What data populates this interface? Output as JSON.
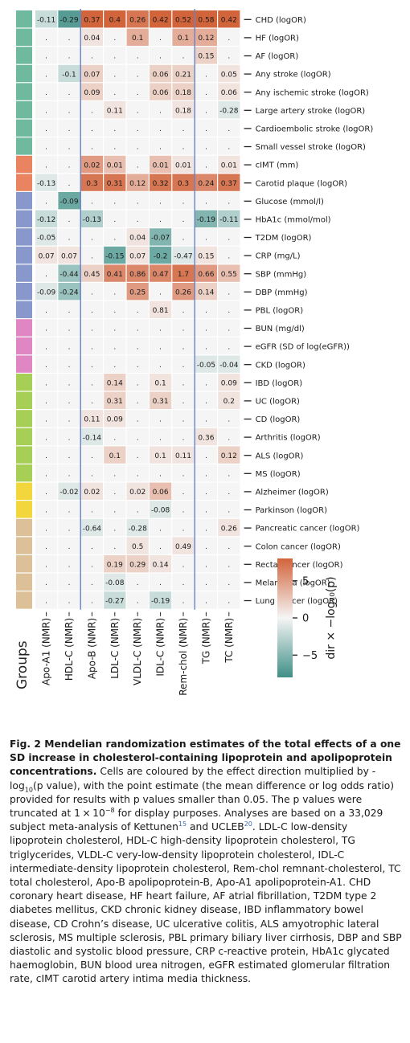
{
  "chart_data": {
    "type": "heatmap",
    "columns": [
      "Apo-A1 (NMR)",
      "HDL-C (NMR)",
      "Apo-B (NMR)",
      "LDL-C (NMR)",
      "VLDL-C (NMR)",
      "IDL-C (NMR)",
      "Rem-chol (NMR)",
      "TG (NMR)",
      "TC (NMR)"
    ],
    "groups_label": "Groups",
    "rows": [
      {
        "label": "CHD (logOR)",
        "group": 0,
        "cells": [
          "-0.11",
          "-0.29",
          "0.37",
          "0.4",
          "0.26",
          "0.42",
          "0.52",
          "0.58",
          "0.42"
        ],
        "c": [
          -2,
          -7,
          8,
          9,
          7,
          9,
          9,
          9,
          9
        ]
      },
      {
        "label": "HF (logOR)",
        "group": 0,
        "cells": [
          ".",
          ".",
          "0.04",
          ".",
          "0.1",
          ".",
          "0.1",
          "0.12",
          "."
        ],
        "c": [
          0,
          0,
          1,
          0,
          4,
          0,
          4,
          4,
          0
        ]
      },
      {
        "label": "AF (logOR)",
        "group": 0,
        "cells": [
          ".",
          ".",
          ".",
          ".",
          ".",
          ".",
          ".",
          "0.15",
          "."
        ],
        "c": [
          0,
          0,
          0,
          0,
          0,
          0,
          0,
          2,
          0
        ]
      },
      {
        "label": "Any stroke (logOR)",
        "group": 0,
        "cells": [
          ".",
          "-0.1",
          "0.07",
          ".",
          ".",
          "0.06",
          "0.21",
          ".",
          "0.05"
        ],
        "c": [
          0,
          -2,
          2,
          0,
          0,
          2,
          2,
          0,
          1
        ]
      },
      {
        "label": "Any ischemic stroke (logOR)",
        "group": 0,
        "cells": [
          ".",
          ".",
          "0.09",
          ".",
          ".",
          "0.06",
          "0.18",
          ".",
          "0.06"
        ],
        "c": [
          0,
          0,
          2,
          0,
          0,
          2,
          2,
          0,
          1
        ]
      },
      {
        "label": "Large artery stroke (logOR)",
        "group": 0,
        "cells": [
          ".",
          ".",
          ".",
          "0.11",
          ".",
          ".",
          "0.18",
          ".",
          "-0.28"
        ],
        "c": [
          0,
          0,
          0,
          1,
          0,
          0,
          1,
          0,
          -1
        ]
      },
      {
        "label": "Cardioembolic stroke (logOR)",
        "group": 0,
        "cells": [
          ".",
          ".",
          ".",
          ".",
          ".",
          ".",
          ".",
          ".",
          "."
        ],
        "c": [
          0,
          0,
          0,
          0,
          0,
          0,
          0,
          0,
          0
        ]
      },
      {
        "label": "Small vessel stroke (logOR)",
        "group": 0,
        "cells": [
          ".",
          ".",
          ".",
          ".",
          ".",
          ".",
          ".",
          ".",
          "."
        ],
        "c": [
          0,
          0,
          0,
          0,
          0,
          0,
          0,
          0,
          0
        ]
      },
      {
        "label": "cIMT (mm)",
        "group": 1,
        "cells": [
          ".",
          ".",
          "0.02",
          "0.01",
          ".",
          "0.01",
          "0.01",
          ".",
          "0.01"
        ],
        "c": [
          0,
          0,
          5,
          3,
          0,
          3,
          1,
          0,
          1
        ]
      },
      {
        "label": "Carotid plaque (logOR)",
        "group": 1,
        "cells": [
          "-0.13",
          ".",
          "0.3",
          "0.31",
          "0.12",
          "0.32",
          "0.3",
          "0.24",
          "0.37"
        ],
        "c": [
          -1,
          0,
          7,
          7,
          4,
          7,
          7,
          6,
          7
        ]
      },
      {
        "label": "Glucose (mmol/l)",
        "group": 2,
        "cells": [
          ".",
          "-0.09",
          ".",
          ".",
          ".",
          ".",
          ".",
          ".",
          "."
        ],
        "c": [
          0,
          -6,
          0,
          0,
          0,
          0,
          0,
          0,
          0
        ]
      },
      {
        "label": "HbA1c (mmol/mol)",
        "group": 2,
        "cells": [
          "-0.12",
          ".",
          "-0.13",
          ".",
          ".",
          ".",
          ".",
          "-0.19",
          "-0.11"
        ],
        "c": [
          -2,
          0,
          -3,
          0,
          0,
          0,
          0,
          -5,
          -3
        ]
      },
      {
        "label": "T2DM (logOR)",
        "group": 2,
        "cells": [
          "-0.05",
          ".",
          ".",
          ".",
          "0.04",
          "-0.07",
          ".",
          ".",
          "."
        ],
        "c": [
          -1,
          0,
          0,
          0,
          1,
          -5,
          0,
          0,
          0
        ]
      },
      {
        "label": "CRP (mg/L)",
        "group": 2,
        "cells": [
          "0.07",
          "0.07",
          ".",
          "-0.15",
          "0.07",
          "-0.2",
          "-0.47",
          "0.15",
          "."
        ],
        "c": [
          1,
          1,
          0,
          -6,
          1,
          -6,
          -1,
          1,
          0
        ]
      },
      {
        "label": "SBP (mmHg)",
        "group": 2,
        "cells": [
          ".",
          "-0.44",
          "0.45",
          "0.41",
          "0.86",
          "0.47",
          "1.7",
          "0.66",
          "0.55"
        ],
        "c": [
          0,
          -4,
          2,
          6,
          6,
          6,
          7,
          5,
          3
        ]
      },
      {
        "label": "DBP (mmHg)",
        "group": 2,
        "cells": [
          "-0.09",
          "-0.24",
          ".",
          ".",
          "0.25",
          ".",
          "0.26",
          "0.14",
          "."
        ],
        "c": [
          -1,
          -4,
          0,
          0,
          5,
          0,
          5,
          2,
          0
        ]
      },
      {
        "label": "PBL (logOR)",
        "group": 2,
        "cells": [
          ".",
          ".",
          ".",
          ".",
          ".",
          "0.81",
          ".",
          ".",
          "."
        ],
        "c": [
          0,
          0,
          0,
          0,
          0,
          1,
          0,
          0,
          0
        ]
      },
      {
        "label": "BUN (mg/dl)",
        "group": 3,
        "cells": [
          ".",
          ".",
          ".",
          ".",
          ".",
          ".",
          ".",
          ".",
          "."
        ],
        "c": [
          0,
          0,
          0,
          0,
          0,
          0,
          0,
          0,
          0
        ]
      },
      {
        "label": "eGFR (SD of log(eGFR))",
        "group": 3,
        "cells": [
          ".",
          ".",
          ".",
          ".",
          ".",
          ".",
          ".",
          ".",
          "."
        ],
        "c": [
          0,
          0,
          0,
          0,
          0,
          0,
          0,
          0,
          0
        ]
      },
      {
        "label": "CKD (logOR)",
        "group": 3,
        "cells": [
          ".",
          ".",
          ".",
          ".",
          ".",
          ".",
          ".",
          "-0.05",
          "-0.04"
        ],
        "c": [
          0,
          0,
          0,
          0,
          0,
          0,
          0,
          -1,
          -1
        ]
      },
      {
        "label": "IBD (logOR)",
        "group": 4,
        "cells": [
          ".",
          ".",
          ".",
          "0.14",
          ".",
          "0.1",
          ".",
          ".",
          "0.09"
        ],
        "c": [
          0,
          0,
          0,
          2,
          0,
          1,
          0,
          0,
          1
        ]
      },
      {
        "label": "UC (logOR)",
        "group": 4,
        "cells": [
          ".",
          ".",
          ".",
          "0.31",
          ".",
          "0.31",
          ".",
          ".",
          "0.2"
        ],
        "c": [
          0,
          0,
          0,
          2,
          0,
          2,
          0,
          0,
          1
        ]
      },
      {
        "label": "CD (logOR)",
        "group": 4,
        "cells": [
          ".",
          ".",
          "0.11",
          "0.09",
          ".",
          ".",
          ".",
          ".",
          "."
        ],
        "c": [
          0,
          0,
          1,
          1,
          0,
          0,
          0,
          0,
          0
        ]
      },
      {
        "label": "Arthritis (logOR)",
        "group": 4,
        "cells": [
          ".",
          ".",
          "-0.14",
          ".",
          ".",
          ".",
          ".",
          "0.36",
          "."
        ],
        "c": [
          0,
          0,
          -1,
          0,
          0,
          0,
          0,
          1,
          0
        ]
      },
      {
        "label": "ALS (logOR)",
        "group": 4,
        "cells": [
          ".",
          ".",
          ".",
          "0.1",
          ".",
          "0.1",
          "0.11",
          ".",
          "0.12"
        ],
        "c": [
          0,
          0,
          0,
          2,
          0,
          1,
          1,
          0,
          2
        ]
      },
      {
        "label": "MS (logOR)",
        "group": 4,
        "cells": [
          ".",
          ".",
          ".",
          ".",
          ".",
          ".",
          ".",
          ".",
          "."
        ],
        "c": [
          0,
          0,
          0,
          0,
          0,
          0,
          0,
          0,
          0
        ]
      },
      {
        "label": "Alzheimer (logOR)",
        "group": 5,
        "cells": [
          ".",
          "-0.02",
          "0.02",
          ".",
          "0.02",
          "0.06",
          ".",
          ".",
          "."
        ],
        "c": [
          0,
          -1,
          1,
          0,
          1,
          3,
          0,
          0,
          0
        ]
      },
      {
        "label": "Parkinson (logOR)",
        "group": 5,
        "cells": [
          ".",
          ".",
          ".",
          ".",
          ".",
          "-0.08",
          ".",
          ".",
          "."
        ],
        "c": [
          0,
          0,
          0,
          0,
          0,
          -1,
          0,
          0,
          0
        ]
      },
      {
        "label": "Pancreatic cancer (logOR)",
        "group": 6,
        "cells": [
          ".",
          ".",
          "-0.64",
          ".",
          "-0.28",
          ".",
          ".",
          ".",
          "0.26"
        ],
        "c": [
          0,
          0,
          -1,
          0,
          -1,
          0,
          0,
          0,
          1
        ]
      },
      {
        "label": "Colon cancer (logOR)",
        "group": 6,
        "cells": [
          ".",
          ".",
          ".",
          ".",
          "0.5",
          ".",
          "0.49",
          ".",
          "."
        ],
        "c": [
          0,
          0,
          0,
          0,
          1,
          0,
          1,
          0,
          0
        ]
      },
      {
        "label": "Rectal cancer (logOR)",
        "group": 6,
        "cells": [
          ".",
          ".",
          ".",
          "0.19",
          "0.29",
          "0.14",
          ".",
          ".",
          "."
        ],
        "c": [
          0,
          0,
          0,
          2,
          2,
          1,
          0,
          0,
          0
        ]
      },
      {
        "label": "Melanoma (logOR)",
        "group": 6,
        "cells": [
          ".",
          ".",
          ".",
          "-0.08",
          ".",
          ".",
          ".",
          ".",
          "."
        ],
        "c": [
          0,
          0,
          0,
          -1,
          0,
          0,
          0,
          0,
          0
        ]
      },
      {
        "label": "Lung cancer (logOR)",
        "group": 6,
        "cells": [
          ".",
          ".",
          ".",
          "-0.27",
          ".",
          "-0.19",
          ".",
          ".",
          "."
        ],
        "c": [
          0,
          0,
          0,
          -2,
          0,
          -2,
          0,
          0,
          0
        ]
      }
    ],
    "group_colors": [
      "#6fb99f",
      "#ea8360",
      "#8898cc",
      "#df86c3",
      "#a7cf55",
      "#f2d63c",
      "#dcc097"
    ],
    "colorbar": {
      "label": "dir × −log₁₀(p)",
      "ticks": [
        5,
        0,
        -5
      ],
      "tick_labels": [
        "5",
        "0",
        "−5"
      ],
      "range": [
        -8,
        8
      ],
      "colors": [
        "#3f8f87",
        "#f5f5f5",
        "#d2643c"
      ]
    },
    "separators_after_columns": [
      1,
      6
    ]
  },
  "caption": {
    "title": "Fig. 2 Mendelian randomization estimates of the total effects of a one SD increase in cholesterol-containing lipoprotein and apolipoprotein concentrations.",
    "text_1": " Cells are coloured by the effect direction multiplied by -log",
    "sub_1": "10",
    "text_2": "(p value), with the point estimate (the mean difference or log odds ratio) provided for results with p values smaller than 0.05. The p values were truncated at 1 × 10",
    "sup_1": "−8",
    "text_3": " for display purposes. Analyses are based on a 33,029 subject meta-analysis of Kettunen",
    "ref_1": "15",
    "text_4": " and UCLEB",
    "ref_2": "20",
    "text_5": ". LDL-C low-density lipoprotein cholesterol, HDL-C high-density lipoprotein cholesterol, TG triglycerides, VLDL-C very-low-density lipoprotein cholesterol, IDL-C intermediate-density lipoprotein cholesterol, Rem-chol remnant-cholesterol, TC total cholesterol, Apo-B apolipoprotein-B, Apo-A1 apolipoprotein-A1. CHD coronary heart disease, HF heart failure, AF atrial fibrillation, T2DM type 2 diabetes mellitus, CKD chronic kidney disease, IBD inflammatory bowel disease, CD Crohn’s disease, UC ulcerative colitis, ALS amyotrophic lateral sclerosis, MS multiple sclerosis, PBL primary biliary liver cirrhosis, DBP and SBP diastolic and systolic blood pressure, CRP c-reactive protein, HbA1c glycated haemoglobin, BUN blood urea nitrogen, eGFR estimated glomerular filtration rate, cIMT carotid artery intima media thickness."
  }
}
